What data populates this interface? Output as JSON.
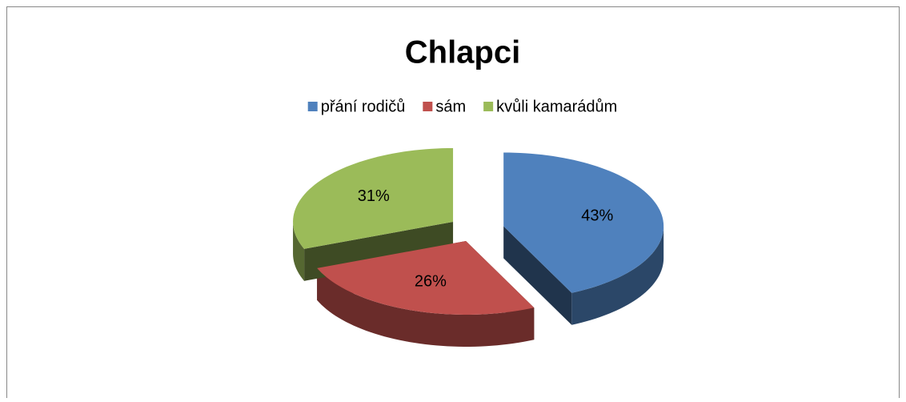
{
  "chart_data": {
    "type": "pie",
    "title": "Chlapci",
    "categories": [
      "přání rodičů",
      "sám",
      "kvůli kamarádům"
    ],
    "values": [
      43,
      26,
      31
    ],
    "value_labels": [
      "43%",
      "26%",
      "31%"
    ],
    "colors": [
      "#4f81bd",
      "#c0504d",
      "#9bbb59"
    ],
    "legend": "top"
  }
}
